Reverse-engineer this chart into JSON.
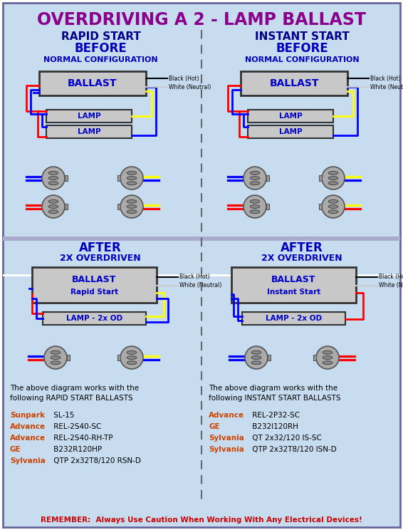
{
  "title": "OVERDRIVING A 2 - LAMP BALLAST",
  "title_color": "#8B008B",
  "bg_color": "#FFFFFF",
  "panel_bg": "#C8DCF0",
  "left_header": "RAPID START",
  "right_header": "INSTANT START",
  "header_color": "#00008B",
  "divider_color": "#666666",
  "ballast_fill": "#C8C8C8",
  "ballast_border": "#333333",
  "ballast_text": "#0000CC",
  "lamp_fill": "#C8C8C8",
  "lamp_border": "#333333",
  "lamp_text": "#0000CC",
  "remember_text": "REMEMBER:  Always Use Caution When Working With Any Electrical Devices!",
  "remember_color": "#CC0000",
  "left_body1": "The above diagram works with the",
  "left_body2": "following RAPID START BALLASTS",
  "right_body1": "The above diagram works with the",
  "right_body2": "following INSTANT START BALLASTS",
  "body_color": "#000000",
  "left_brands": [
    [
      "Sunpark",
      " SL-15"
    ],
    [
      "Advance",
      " REL-2S40-SC"
    ],
    [
      "Advance",
      " REL-2S40-RH-TP"
    ],
    [
      "GE",
      " B232R120HP"
    ],
    [
      "Sylvania",
      " QTP 2x32T8/120 RSN-D"
    ]
  ],
  "right_brands": [
    [
      "Advance",
      " REL-2P32-SC"
    ],
    [
      "GE",
      " B232I120RH"
    ],
    [
      "Sylvania",
      " QT 2x32/120 IS-SC"
    ],
    [
      "Sylvania",
      " QTP 2x32T8/120 ISN-D"
    ]
  ],
  "brand_color": "#CC4400",
  "model_color": "#000000",
  "wire_lw": 2.0
}
